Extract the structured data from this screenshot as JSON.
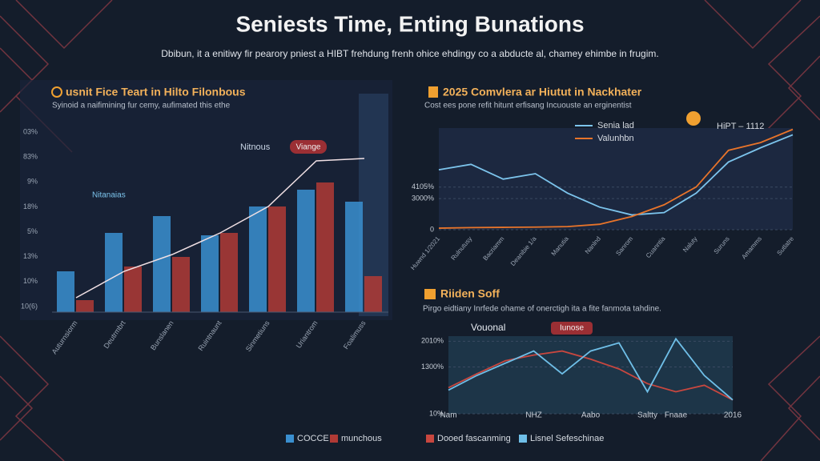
{
  "header": {
    "title": "Seniests Time, Enting Bunations",
    "subtitle": "Dbibun, it a enitiwy fir pearory pniest a HIBT frehdung frenh ohice ehdingy co a abducte al, chamey ehimbe in frugim."
  },
  "chart_data": [
    {
      "type": "bar",
      "title": "usnit Fice Teart in Hilto Filonbous",
      "subtitle": "Syinoid a naifimining fur cemy, aufimated this ethe",
      "ytick_labels": [
        "03%",
        "83%",
        "9%",
        "18%",
        "5%",
        "13%",
        "10%",
        "10(6)"
      ],
      "ylim": [
        0,
        7.5
      ],
      "categories": [
        "Auturnsiorm",
        "Deutrmbrt",
        "Bunslanen",
        "Ruintnaunt",
        "Sinmetiuns",
        "Uriantrom",
        "Foalimuss"
      ],
      "series": [
        {
          "name": "COCCE",
          "color": "#3a8fd0",
          "values": [
            1.7,
            3.3,
            4.0,
            3.2,
            4.4,
            5.1,
            4.6
          ]
        },
        {
          "name": "munchous",
          "color": "#b03a35",
          "values": [
            0.5,
            1.9,
            2.3,
            3.3,
            4.4,
            5.4,
            1.5
          ]
        }
      ],
      "trend": {
        "color": "#f0e0e4",
        "values": [
          0.6,
          1.7,
          2.4,
          3.3,
          4.4,
          6.3,
          6.4
        ]
      },
      "annotations": [
        "Nitnous",
        "Viange",
        "Nitanaias"
      ]
    },
    {
      "type": "line",
      "title": "2025 Comvlera ar Hiutut in Nackhater",
      "subtitle": "Cost ees pone refit hitunt erfisang Incuouste an erginentist",
      "categories": [
        "Huwnd 1/2021",
        "Rulnutusy",
        "Bacriamm",
        "Deanibie 1/a",
        "Manutia",
        "Nanlnd",
        "Sanrom",
        "Cuanntia",
        "Naluty",
        "Suruns",
        "Amamms",
        "Sutlatre"
      ],
      "ylim": [
        0,
        9800
      ],
      "yticks": [
        0,
        {
          "value": 3000,
          "label": "3000%"
        },
        {
          "value": 4105,
          "label": "4105%"
        }
      ],
      "series": [
        {
          "name": "Senia lad",
          "color": "#7cc4ec",
          "values": [
            5775,
            6300,
            4875,
            5400,
            3525,
            2175,
            1425,
            1650,
            3525,
            6525,
            7900,
            9150
          ]
        },
        {
          "name": "Valunhbn",
          "color": "#e8742a",
          "values": [
            150,
            200,
            225,
            250,
            300,
            525,
            1275,
            2400,
            4125,
            7650,
            8400,
            9675
          ]
        }
      ],
      "annotations": [
        "HiPT – 1112"
      ]
    },
    {
      "type": "line",
      "title": "Riiden Soff",
      "subtitle": "Pirgo eidtiany Inrfede ohame of onerctigh ita a fite fanmota tahdine.",
      "categories": [
        "Nam",
        null,
        null,
        "NHZ",
        null,
        "Aabo",
        null,
        "Saltty",
        "Fnaae",
        null,
        "2016"
      ],
      "ylim": [
        10,
        2150
      ],
      "yticks": [
        {
          "value": 10,
          "label": "10%"
        },
        {
          "value": 1300,
          "label": "1300%"
        },
        {
          "value": 2010,
          "label": "2010%"
        }
      ],
      "series": [
        {
          "name": "Dooed fascanming",
          "color": "#c8473f",
          "values": [
            729,
            1111,
            1471,
            1628,
            1740,
            1516,
            1246,
            841,
            617,
            796,
            392
          ]
        },
        {
          "name": "Lisnel Sefeschinae",
          "color": "#6fbfe8",
          "values": [
            662,
            1066,
            1403,
            1740,
            1111,
            1740,
            1965,
            617,
            2077,
            1066,
            392
          ]
        }
      ],
      "annotations": [
        "Vouonal",
        "Iunose"
      ]
    }
  ]
}
